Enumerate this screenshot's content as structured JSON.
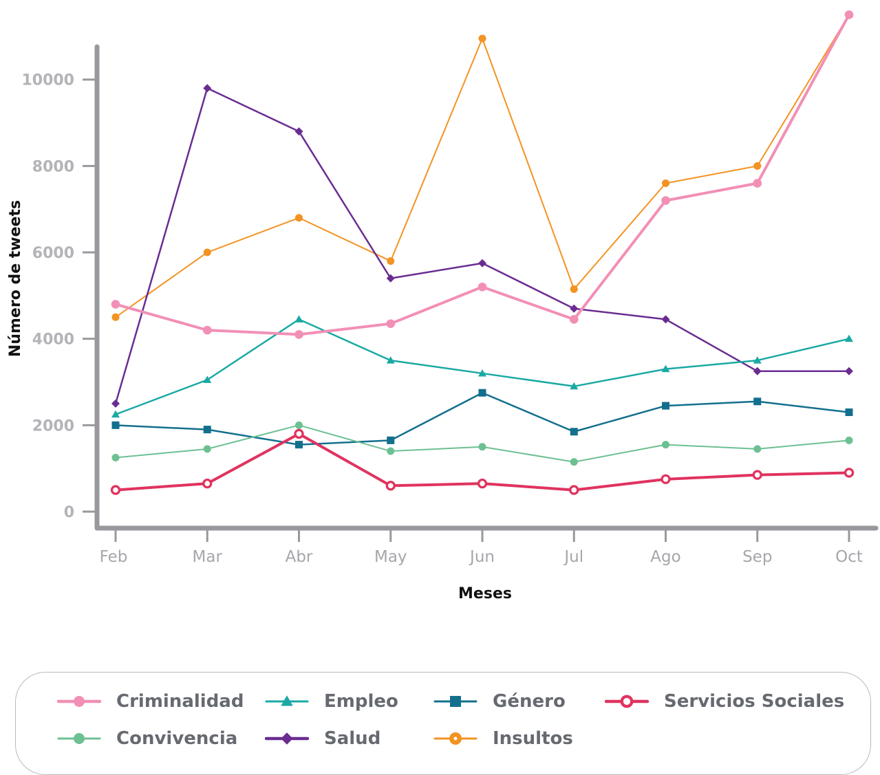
{
  "chart_data": {
    "type": "line",
    "title": "",
    "xlabel": "Meses",
    "ylabel": "Número de tweets",
    "ylim": [
      0,
      11500
    ],
    "yticks": [
      0,
      2000,
      4000,
      6000,
      8000,
      10000
    ],
    "grid": false,
    "legend_position": "bottom",
    "categories": [
      "Feb",
      "Mar",
      "Abr",
      "May",
      "Jun",
      "Jul",
      "Ago",
      "Sep",
      "Oct"
    ],
    "series": [
      {
        "name": "Insultos",
        "color": "#f39322",
        "marker": "circle",
        "width": 2,
        "values": [
          4500,
          6000,
          6800,
          5800,
          10950,
          5150,
          7600,
          8000,
          11500
        ]
      },
      {
        "name": "Salud",
        "color": "#6a2c91",
        "marker": "diamond",
        "width": 2.5,
        "values": [
          2500,
          9800,
          8800,
          5400,
          5750,
          4700,
          4450,
          3250,
          3250
        ]
      },
      {
        "name": "Empleo",
        "color": "#1aa9a4",
        "marker": "triangle",
        "width": 2.5,
        "values": [
          2250,
          3050,
          4450,
          3500,
          3200,
          2900,
          3300,
          3500,
          4000
        ]
      },
      {
        "name": "Género",
        "color": "#136f8e",
        "marker": "square",
        "width": 2.5,
        "values": [
          2000,
          1900,
          1550,
          1650,
          2750,
          1850,
          2450,
          2550,
          2300
        ]
      },
      {
        "name": "Convivencia",
        "color": "#6cc092",
        "marker": "circle",
        "width": 2,
        "values": [
          1250,
          1450,
          2000,
          1400,
          1500,
          1150,
          1550,
          1450,
          1650
        ]
      },
      {
        "name": "Servicios Sociales",
        "color": "#e0335f",
        "marker": "hollow-circle",
        "width": 4,
        "values": [
          500,
          650,
          1800,
          600,
          650,
          500,
          750,
          850,
          900
        ]
      },
      {
        "name": "Criminalidad",
        "color": "#f28fb6",
        "marker": "circle",
        "width": 4,
        "values": [
          4800,
          4200,
          4100,
          4350,
          5200,
          4450,
          7200,
          7600,
          11500
        ]
      }
    ]
  },
  "legend": {
    "items": [
      {
        "name": "Criminalidad",
        "color": "#f28fb6",
        "marker": "circle"
      },
      {
        "name": "Empleo",
        "color": "#1aa9a4",
        "marker": "triangle"
      },
      {
        "name": "Género",
        "color": "#136f8e",
        "marker": "square"
      },
      {
        "name": "Servicios Sociales",
        "color": "#e0335f",
        "marker": "hollow-circle"
      },
      {
        "name": "Convivencia",
        "color": "#6cc092",
        "marker": "circle"
      },
      {
        "name": "Salud",
        "color": "#6a2c91",
        "marker": "diamond"
      },
      {
        "name": "Insultos",
        "color": "#f39322",
        "marker": "circle-dot"
      }
    ]
  }
}
